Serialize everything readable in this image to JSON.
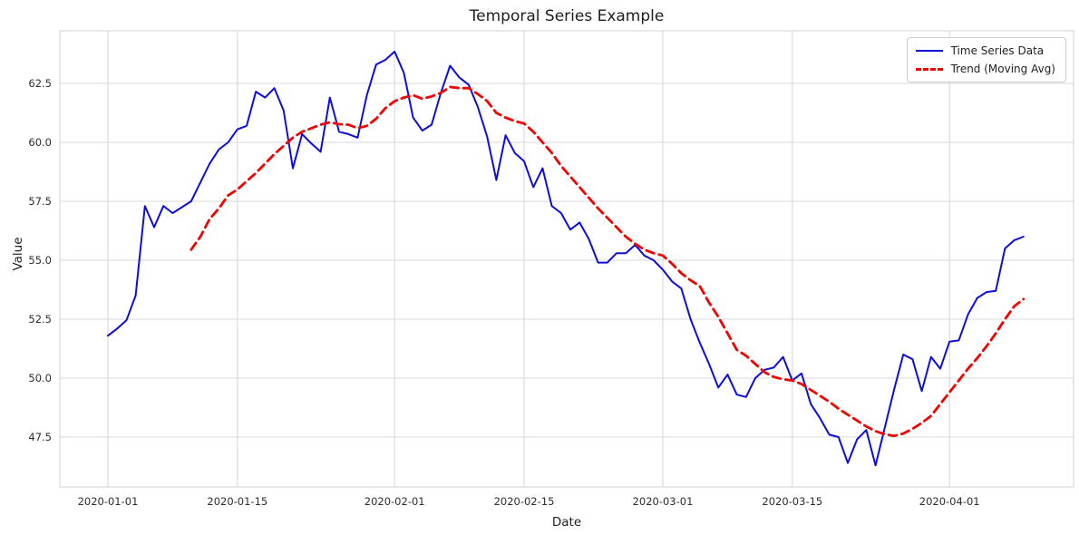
{
  "chart_data": {
    "type": "line",
    "title": "Temporal Series Example",
    "xlabel": "Date",
    "ylabel": "Value",
    "grid": true,
    "legend_position": "upper right",
    "x_start_date": "2020-01-01",
    "x_tick_labels": [
      {
        "label": "2020-01-01",
        "day": 0
      },
      {
        "label": "2020-01-15",
        "day": 14
      },
      {
        "label": "2020-02-01",
        "day": 31
      },
      {
        "label": "2020-02-15",
        "day": 45
      },
      {
        "label": "2020-03-01",
        "day": 60
      },
      {
        "label": "2020-03-15",
        "day": 74
      },
      {
        "label": "2020-04-01",
        "day": 91
      }
    ],
    "y_ticks": [
      47.5,
      50.0,
      52.5,
      55.0,
      57.5,
      60.0,
      62.5
    ],
    "ylim": [
      45.4,
      64.75
    ],
    "xlim_days": [
      -5.2,
      104.4
    ],
    "series": [
      {
        "name": "Time Series Data",
        "color": "#0d0ddd",
        "style": "solid",
        "start_day": 0,
        "values": [
          51.8,
          52.1,
          52.45,
          53.5,
          57.3,
          56.4,
          57.3,
          57.0,
          57.25,
          57.5,
          58.3,
          59.1,
          59.7,
          60.0,
          60.55,
          60.7,
          62.15,
          61.9,
          62.3,
          61.35,
          58.9,
          60.35,
          59.95,
          59.6,
          61.9,
          60.45,
          60.35,
          60.2,
          62.0,
          63.3,
          63.5,
          63.85,
          62.95,
          61.05,
          60.5,
          60.75,
          62.1,
          63.25,
          62.75,
          62.45,
          61.5,
          60.25,
          58.4,
          60.3,
          59.55,
          59.2,
          58.1,
          58.9,
          57.3,
          57.0,
          56.3,
          56.6,
          55.9,
          54.9,
          54.9,
          55.3,
          55.3,
          55.65,
          55.2,
          55.0,
          54.6,
          54.1,
          53.8,
          52.5,
          51.5,
          50.6,
          49.6,
          50.15,
          49.3,
          49.2,
          50.0,
          50.35,
          50.45,
          50.9,
          49.9,
          50.2,
          48.9,
          48.3,
          47.6,
          47.5,
          46.4,
          47.4,
          47.8,
          46.3,
          47.9,
          49.5,
          51.0,
          50.8,
          49.45,
          50.9,
          50.4,
          51.55,
          51.6,
          52.7,
          53.4,
          53.65,
          53.7,
          55.5,
          55.85,
          56.0
        ]
      },
      {
        "name": "Trend (Moving Avg)",
        "color": "#f40000",
        "style": "dashed",
        "start_day": 9,
        "values": [
          55.45,
          56.0,
          56.75,
          57.2,
          57.75,
          58.0,
          58.35,
          58.7,
          59.1,
          59.5,
          59.85,
          60.2,
          60.45,
          60.6,
          60.75,
          60.85,
          60.77,
          60.75,
          60.6,
          60.7,
          61.0,
          61.45,
          61.75,
          61.9,
          62.0,
          61.85,
          61.95,
          62.1,
          62.35,
          62.3,
          62.3,
          62.05,
          61.75,
          61.25,
          61.05,
          60.9,
          60.8,
          60.45,
          60.0,
          59.55,
          59.0,
          58.55,
          58.1,
          57.65,
          57.2,
          56.8,
          56.4,
          56.0,
          55.7,
          55.45,
          55.3,
          55.2,
          54.85,
          54.45,
          54.15,
          53.9,
          53.2,
          52.6,
          51.9,
          51.2,
          50.95,
          50.6,
          50.25,
          50.05,
          49.95,
          49.9,
          49.75,
          49.5,
          49.25,
          49.0,
          48.7,
          48.45,
          48.2,
          47.95,
          47.75,
          47.62,
          47.55,
          47.65,
          47.85,
          48.1,
          48.4,
          48.9,
          49.4,
          49.9,
          50.4,
          50.85,
          51.35,
          51.9,
          52.5,
          53.05,
          53.35
        ]
      }
    ],
    "colors": {
      "grid": "#d9d9d9",
      "spine": "#d9d9d9",
      "background": "#ffffff",
      "tick_text": "#2e2e2e",
      "title_text": "#1f1f1f"
    }
  },
  "legend": {
    "items": [
      {
        "label": "Time Series Data"
      },
      {
        "label": "Trend (Moving Avg)"
      }
    ]
  }
}
